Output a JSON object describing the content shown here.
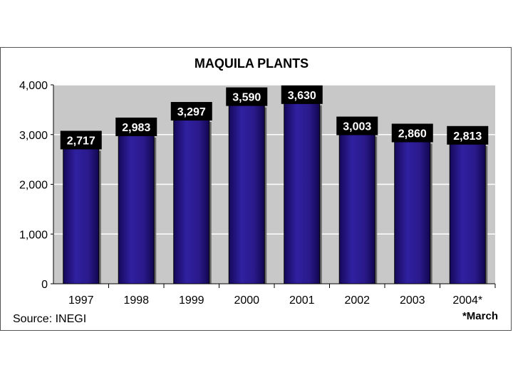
{
  "chart_data": {
    "type": "bar",
    "title": "MAQUILA PLANTS",
    "categories": [
      "1997",
      "1998",
      "1999",
      "2000",
      "2001",
      "2002",
      "2003",
      "2004*"
    ],
    "values": [
      2717,
      2983,
      3297,
      3590,
      3630,
      3003,
      2860,
      2813
    ],
    "value_labels": [
      "2,717",
      "2,983",
      "3,297",
      "3,590",
      "3,630",
      "3,003",
      "2,860",
      "2,813"
    ],
    "y_ticks": [
      "0",
      "1,000",
      "2,000",
      "3,000",
      "4,000"
    ],
    "ylim": [
      0,
      4000
    ],
    "grid": true,
    "source": "Source: INEGI",
    "note": "*March",
    "colors": {
      "bar": "#2a1a8c",
      "plot_bg": "#c8c8c8",
      "label_bg": "#000000",
      "label_text": "#ffffff"
    }
  }
}
